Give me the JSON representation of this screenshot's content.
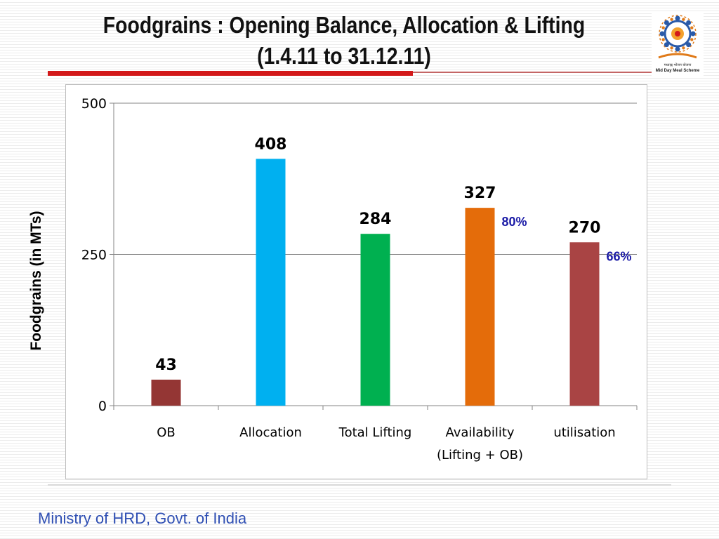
{
  "slide": {
    "title_line1": "Foodgrains : Opening Balance, Allocation & Lifting",
    "title_line2": "(1.4.11 to 31.12.11)",
    "logo_caption_hindi": "मध्याह्न भोजन योजना",
    "logo_caption": "Mid Day Meal Scheme",
    "footer": "Ministry of HRD, Govt. of India"
  },
  "colors": {
    "accent_red": "#d3191a",
    "footer_blue": "#2f4fb3",
    "pct_blue": "#1a1aa6"
  },
  "chart_data": {
    "type": "bar",
    "title": "",
    "xlabel": "",
    "ylabel": "Foodgrains (in MTs)",
    "ylim": [
      0,
      500
    ],
    "yticks": [
      0,
      250,
      500
    ],
    "grid": true,
    "legend": "none",
    "categories": [
      "OB",
      "Allocation",
      "Total Lifting",
      "Availability\n(Lifting + OB)",
      "utilisation"
    ],
    "values": [
      43,
      408,
      284,
      327,
      270
    ],
    "bar_colors": [
      "#943634",
      "#00b0f0",
      "#00b050",
      "#e46c0a",
      "#a94444"
    ],
    "annotations": [
      {
        "category": "Availability\n(Lifting + OB)",
        "text": "80%"
      },
      {
        "category": "utilisation",
        "text": "66%"
      }
    ]
  }
}
